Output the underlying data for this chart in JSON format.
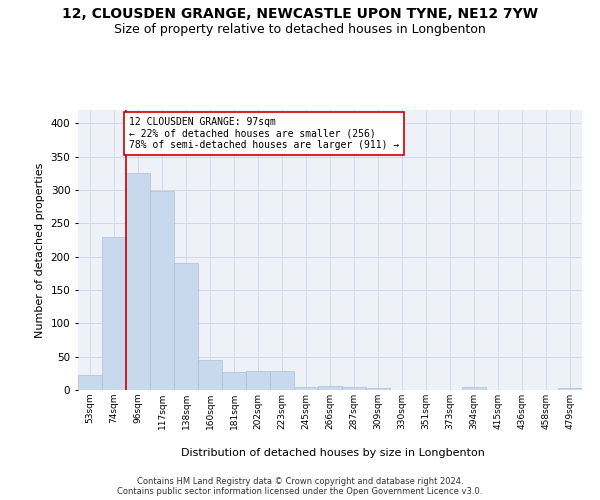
{
  "title": "12, CLOUSDEN GRANGE, NEWCASTLE UPON TYNE, NE12 7YW",
  "subtitle": "Size of property relative to detached houses in Longbenton",
  "xlabel": "Distribution of detached houses by size in Longbenton",
  "ylabel": "Number of detached properties",
  "categories": [
    "53sqm",
    "74sqm",
    "96sqm",
    "117sqm",
    "138sqm",
    "160sqm",
    "181sqm",
    "202sqm",
    "223sqm",
    "245sqm",
    "266sqm",
    "287sqm",
    "309sqm",
    "330sqm",
    "351sqm",
    "373sqm",
    "394sqm",
    "415sqm",
    "436sqm",
    "458sqm",
    "479sqm"
  ],
  "values": [
    22,
    230,
    325,
    298,
    190,
    45,
    27,
    28,
    29,
    5,
    6,
    5,
    3,
    0,
    0,
    0,
    5,
    0,
    0,
    0,
    3
  ],
  "bar_color": "#c9d9ed",
  "bar_edgecolor": "#a8bfd8",
  "property_line_index": 2,
  "annotation_line1": "12 CLOUSDEN GRANGE: 97sqm",
  "annotation_line2": "← 22% of detached houses are smaller (256)",
  "annotation_line3": "78% of semi-detached houses are larger (911) →",
  "annotation_box_color": "#ffffff",
  "annotation_box_edgecolor": "#cc0000",
  "vline_color": "#cc0000",
  "grid_color": "#cdd8e8",
  "background_color": "#eef2f8",
  "footer_line1": "Contains HM Land Registry data © Crown copyright and database right 2024.",
  "footer_line2": "Contains public sector information licensed under the Open Government Licence v3.0.",
  "ylim": [
    0,
    420
  ],
  "title_fontsize": 10,
  "subtitle_fontsize": 9,
  "ylabel_text": "Number of detached properties"
}
